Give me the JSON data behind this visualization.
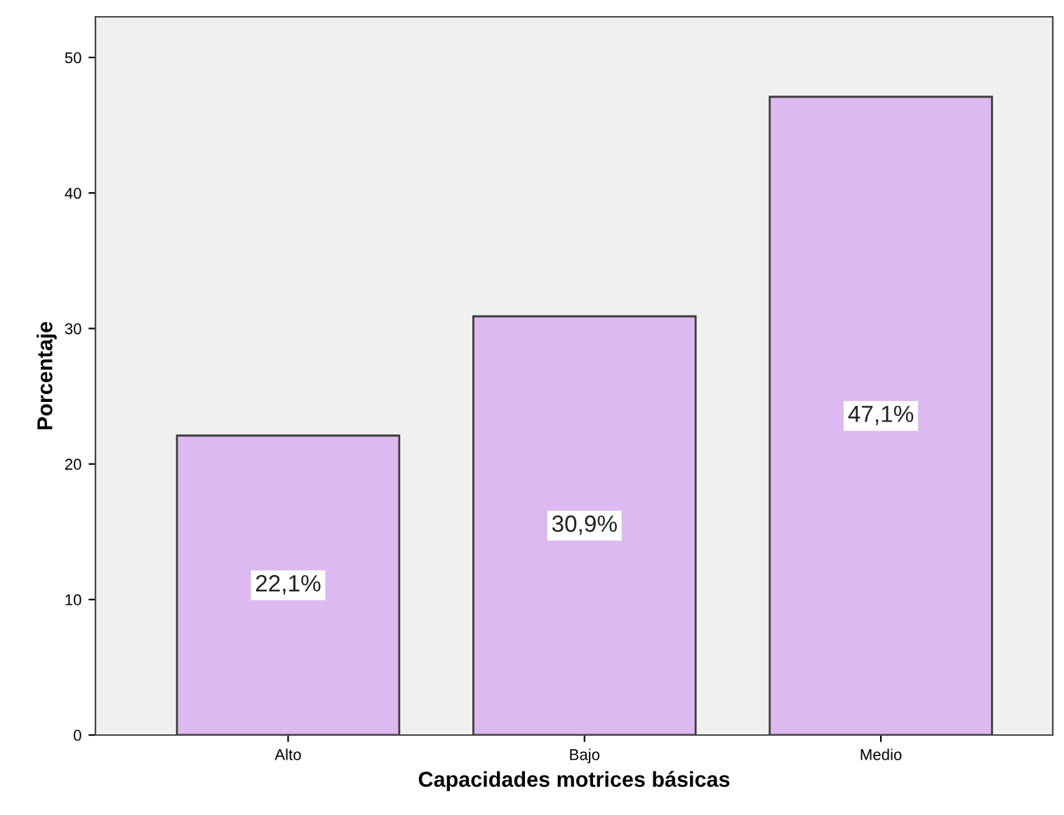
{
  "chart_data": {
    "type": "bar",
    "xlabel": "Capacidades motrices básicas",
    "ylabel": "Porcentaje",
    "categories": [
      "Alto",
      "Bajo",
      "Medio"
    ],
    "values": [
      22.1,
      30.9,
      47.1
    ],
    "value_labels": [
      "22,1%",
      "30,9%",
      "47,1%"
    ],
    "color": "#dcb9f0",
    "ylim": [
      0,
      53
    ],
    "yticks": [
      0,
      10,
      20,
      30,
      40,
      50
    ],
    "grid": false
  }
}
